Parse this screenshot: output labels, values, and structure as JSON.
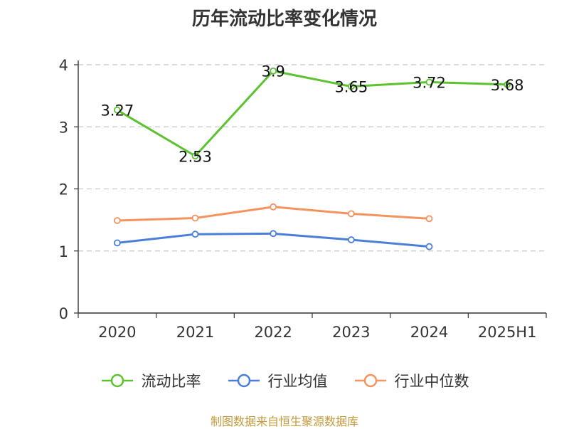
{
  "title": "历年流动比率变化情况",
  "source": "制图数据来自恒生聚源数据库",
  "colors": {
    "primary": "#5cc22f",
    "average": "#4a7fd9",
    "median": "#f5935f",
    "source": "#c49a3a"
  },
  "chart_data": {
    "type": "line",
    "title": "历年流动比率变化情况",
    "categories": [
      "2020",
      "2021",
      "2022",
      "2023",
      "2024",
      "2025H1"
    ],
    "ylim": [
      0,
      4
    ],
    "yticks": [
      "0",
      "1",
      "2",
      "3",
      "4"
    ],
    "grid": true,
    "legend_position": "bottom",
    "series": [
      {
        "name": "流动比率",
        "color": "#5cc22f",
        "values": [
          3.27,
          2.53,
          3.9,
          3.65,
          3.72,
          3.68
        ],
        "labels": [
          "3.27",
          "2.53",
          "3.9",
          "3.65",
          "3.72",
          "3.68"
        ]
      },
      {
        "name": "行业均值",
        "color": "#4a7fd9",
        "values": [
          1.13,
          1.27,
          1.28,
          1.18,
          1.07,
          null
        ]
      },
      {
        "name": "行业中位数",
        "color": "#f5935f",
        "values": [
          1.49,
          1.53,
          1.71,
          1.6,
          1.52,
          null
        ]
      }
    ]
  }
}
